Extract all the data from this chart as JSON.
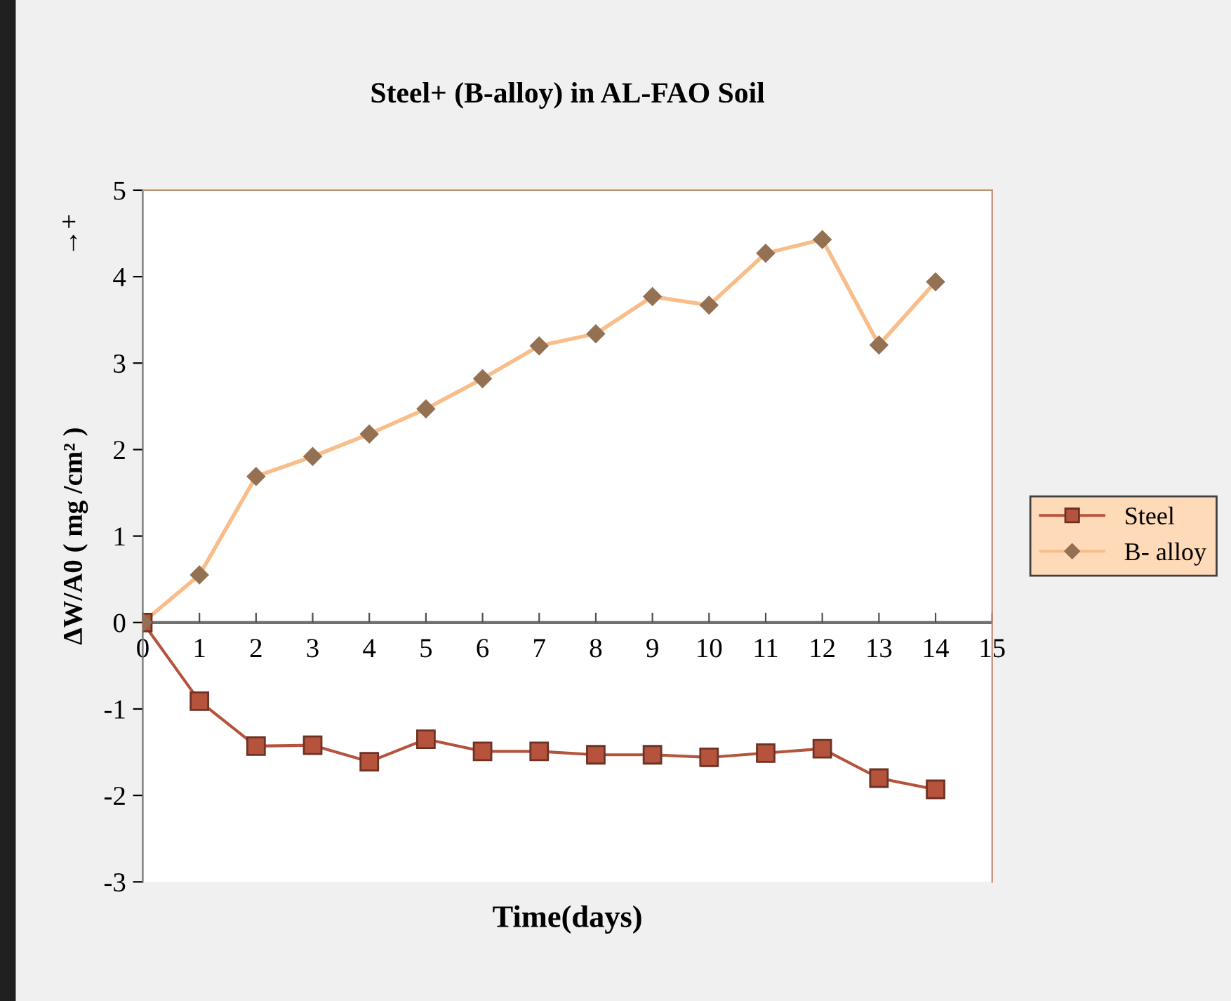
{
  "chart_data": {
    "type": "line",
    "title": "Steel+ (B-alloy) in AL-FAO Soil",
    "xlabel": "Time(days)",
    "ylabel": "ΔW/A0 ( mg /cm² )",
    "annotations": [
      "→+"
    ],
    "x": [
      0,
      1,
      2,
      3,
      4,
      5,
      6,
      7,
      8,
      9,
      10,
      11,
      12,
      13,
      14
    ],
    "series": [
      {
        "name": "Steel",
        "color": "#b5533c",
        "marker": "square",
        "values": [
          0,
          -0.91,
          -1.43,
          -1.42,
          -1.61,
          -1.35,
          -1.49,
          -1.49,
          -1.53,
          -1.53,
          -1.56,
          -1.51,
          -1.46,
          -1.8,
          -1.93
        ]
      },
      {
        "name": "B- alloy",
        "color": "#f9bd8a",
        "marker": "diamond",
        "values": [
          0,
          0.55,
          1.69,
          1.92,
          2.18,
          2.47,
          2.82,
          3.2,
          3.34,
          3.77,
          3.67,
          4.27,
          4.43,
          3.21,
          3.94
        ]
      }
    ],
    "xlim": [
      0,
      15
    ],
    "xticks": [
      0,
      1,
      2,
      3,
      4,
      5,
      6,
      7,
      8,
      9,
      10,
      11,
      12,
      13,
      14,
      15
    ],
    "ylim": [
      -3,
      5
    ],
    "yticks": [
      -3,
      -2,
      -1,
      0,
      1,
      2,
      3,
      4,
      5
    ],
    "grid": false,
    "legend": "right",
    "line_style": "solid"
  }
}
